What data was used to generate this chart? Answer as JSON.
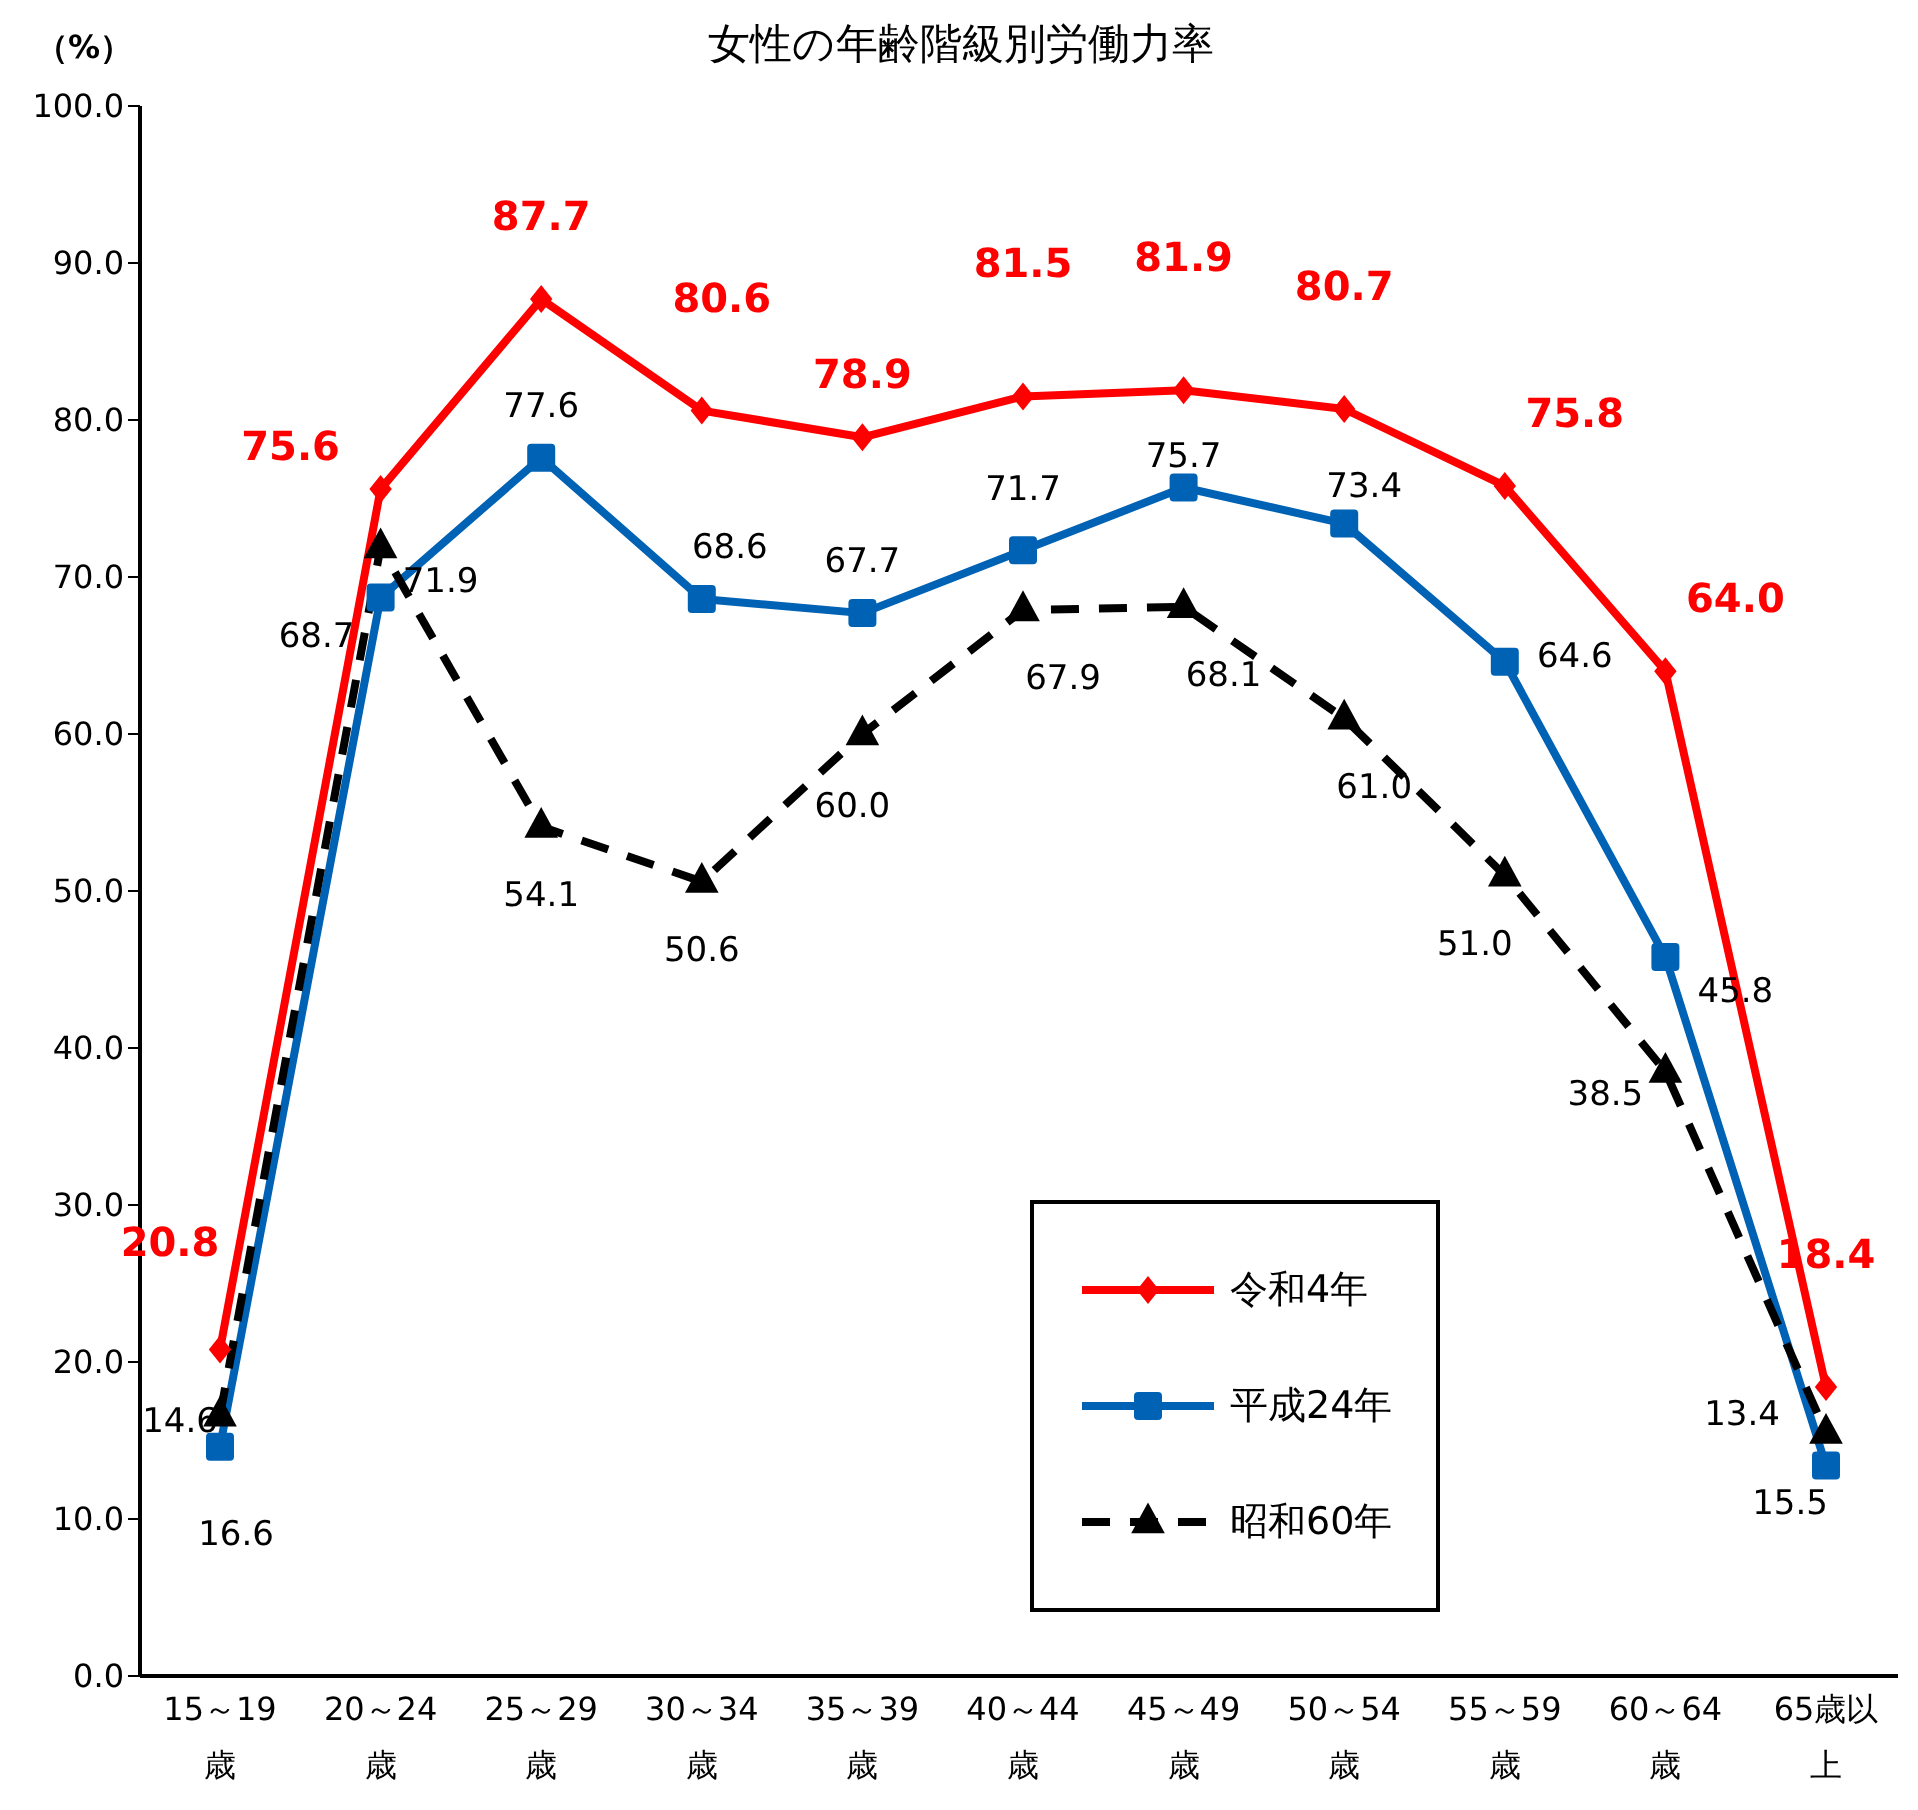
{
  "chart_data": {
    "type": "line",
    "title": "女性の年齢階級別労働力率",
    "ylabel": "（%）",
    "categories": [
      "15～19歳",
      "20～24歳",
      "25～29歳",
      "30～34歳",
      "35～39歳",
      "40～44歳",
      "45～49歳",
      "50～54歳",
      "55～59歳",
      "60～64歳",
      "65歳以上"
    ],
    "series": [
      {
        "name": "令和4年",
        "color": "#ff0000",
        "marker": "diamond",
        "line_style": "solid",
        "values": [
          20.8,
          75.6,
          87.7,
          80.6,
          78.9,
          81.5,
          81.9,
          80.7,
          75.8,
          64.0,
          18.4
        ],
        "value_labels": [
          "20.8",
          "75.6",
          "87.7",
          "80.6",
          "78.9",
          "81.5",
          "81.9",
          "80.7",
          "75.8",
          "64.0",
          "18.4"
        ]
      },
      {
        "name": "平成24年",
        "color": "#0062b4",
        "marker": "square",
        "line_style": "solid",
        "values": [
          14.6,
          68.7,
          77.6,
          68.6,
          67.7,
          71.7,
          75.7,
          73.4,
          64.6,
          45.8,
          13.4
        ],
        "value_labels": [
          "14.6",
          "68.7",
          "77.6",
          "68.6",
          "67.7",
          "71.7",
          "75.7",
          "73.4",
          "64.6",
          "45.8",
          "13.4"
        ]
      },
      {
        "name": "昭和60年",
        "color": "#000000",
        "marker": "triangle",
        "line_style": "dashed",
        "values": [
          16.6,
          71.9,
          54.1,
          50.6,
          60.0,
          67.9,
          68.1,
          61.0,
          51.0,
          38.5,
          15.5
        ],
        "value_labels": [
          "16.6",
          "71.9",
          "54.1",
          "50.6",
          "60.0",
          "67.9",
          "68.1",
          "61.0",
          "51.0",
          "38.5",
          "15.5"
        ]
      }
    ],
    "ylim": [
      0,
      100
    ],
    "yticks": [
      {
        "value": 0,
        "label": "0.0"
      },
      {
        "value": 10,
        "label": "10.0"
      },
      {
        "value": 20,
        "label": "20.0"
      },
      {
        "value": 30,
        "label": "30.0"
      },
      {
        "value": 40,
        "label": "40.0"
      },
      {
        "value": 50,
        "label": "50.0"
      },
      {
        "value": 60,
        "label": "60.0"
      },
      {
        "value": 70,
        "label": "70.0"
      },
      {
        "value": 80,
        "label": "80.0"
      },
      {
        "value": 90,
        "label": "90.0"
      },
      {
        "value": 100,
        "label": "100.0"
      }
    ],
    "grid": false,
    "legend": "bottom right"
  }
}
